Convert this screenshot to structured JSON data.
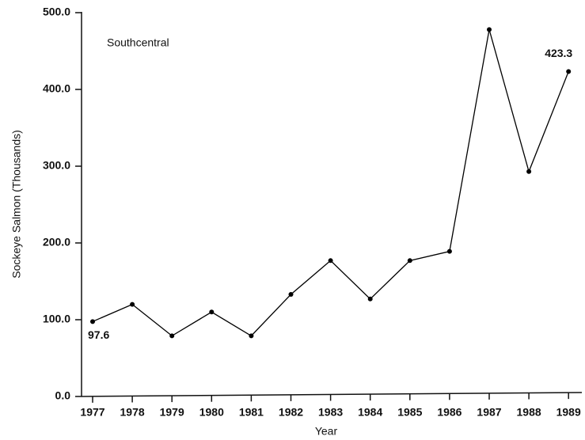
{
  "chart_data": {
    "type": "line",
    "annotations": [
      "Southcentral"
    ],
    "xlabel": "Year",
    "ylabel": "Sockeye Salmon (Thousands)",
    "categories": [
      "1977",
      "1978",
      "1979",
      "1980",
      "1981",
      "1982",
      "1983",
      "1984",
      "1985",
      "1986",
      "1987",
      "1988",
      "1989"
    ],
    "values": [
      97.6,
      120,
      79,
      110,
      79,
      133,
      177,
      127,
      177,
      189,
      478,
      293,
      423.3
    ],
    "value_labels": [
      "97.6",
      null,
      null,
      null,
      null,
      null,
      null,
      null,
      null,
      null,
      null,
      null,
      "423.3"
    ],
    "color": "#000000",
    "ylim": [
      0,
      500
    ],
    "yticks": [
      {
        "value": 0,
        "label": "0.0"
      },
      {
        "value": 100,
        "label": "100.0"
      },
      {
        "value": 200,
        "label": "200.0"
      },
      {
        "value": 300,
        "label": "300.0"
      },
      {
        "value": 400,
        "label": "400.0"
      },
      {
        "value": 500,
        "label": "500.0"
      }
    ],
    "grid": false
  }
}
